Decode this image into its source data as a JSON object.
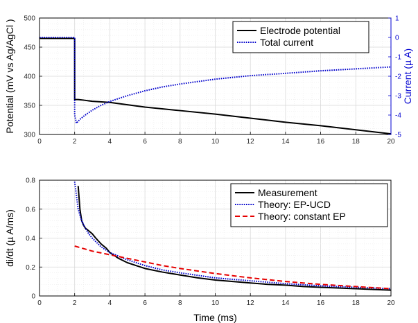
{
  "chart_data": [
    {
      "type": "line",
      "xlabel": "",
      "ylabel": "Potential (mV vs Ag/AgCl )",
      "y2label": "Current (µ A)",
      "xlim": [
        0,
        20
      ],
      "ylim": [
        300,
        500
      ],
      "y2lim": [
        -5,
        1
      ],
      "x_ticks": [
        0,
        2,
        4,
        6,
        8,
        10,
        12,
        14,
        16,
        18,
        20
      ],
      "y_ticks": [
        300,
        350,
        400,
        450,
        500
      ],
      "y2_ticks": [
        -5,
        -4,
        -3,
        -2,
        -1,
        0,
        1
      ],
      "grid": true,
      "legend_position": "top-right",
      "series": [
        {
          "name": "Electrode potential",
          "axis": "left",
          "color": "#000000",
          "style": "solid",
          "x": [
            0,
            2,
            2.001,
            2.2,
            2.5,
            3,
            4,
            5,
            6,
            8,
            10,
            12,
            14,
            16,
            18,
            20
          ],
          "y": [
            465,
            465,
            360,
            360,
            359,
            357,
            355,
            351,
            347,
            341,
            335,
            328,
            321,
            315,
            308,
            301
          ]
        },
        {
          "name": "Total current",
          "axis": "right",
          "color": "#0000cc",
          "style": "dotted",
          "x": [
            0,
            2,
            2.001,
            2.1,
            2.3,
            2.6,
            3,
            3.5,
            4,
            5,
            6,
            7,
            8,
            10,
            12,
            14,
            16,
            18,
            20
          ],
          "y": [
            0,
            0,
            -4.0,
            -4.42,
            -4.22,
            -4.0,
            -3.75,
            -3.5,
            -3.3,
            -3.0,
            -2.75,
            -2.55,
            -2.4,
            -2.15,
            -1.97,
            -1.85,
            -1.72,
            -1.62,
            -1.52
          ]
        }
      ]
    },
    {
      "type": "line",
      "xlabel": "Time (ms)",
      "ylabel": "di/dt (µ A/ms)",
      "xlim": [
        0,
        20
      ],
      "ylim": [
        0,
        0.8
      ],
      "x_ticks": [
        0,
        2,
        4,
        6,
        8,
        10,
        12,
        14,
        16,
        18,
        20
      ],
      "y_ticks": [
        0,
        0.2,
        0.4,
        0.6,
        0.8
      ],
      "grid": true,
      "legend_position": "top-right",
      "series": [
        {
          "name": "Measurement",
          "color": "#000000",
          "style": "solid",
          "x": [
            2.2,
            2.3,
            2.4,
            2.5,
            2.6,
            2.7,
            2.8,
            3,
            3.2,
            3.5,
            3.8,
            4,
            4.5,
            5,
            5.5,
            6,
            7,
            8,
            9,
            10,
            11,
            12,
            13,
            14,
            15,
            16,
            17,
            18,
            19,
            20
          ],
          "y": [
            0.76,
            0.6,
            0.52,
            0.49,
            0.47,
            0.46,
            0.45,
            0.43,
            0.4,
            0.36,
            0.33,
            0.3,
            0.26,
            0.23,
            0.21,
            0.19,
            0.165,
            0.145,
            0.125,
            0.11,
            0.1,
            0.09,
            0.08,
            0.075,
            0.065,
            0.06,
            0.055,
            0.05,
            0.045,
            0.04
          ]
        },
        {
          "name": "Theory: EP-UCD",
          "color": "#0000cc",
          "style": "dotted",
          "x": [
            2.0,
            2.2,
            2.4,
            2.6,
            2.8,
            3,
            3.5,
            4,
            5,
            6,
            7,
            8,
            10,
            12,
            14,
            16,
            18,
            20
          ],
          "y": [
            0.79,
            0.6,
            0.52,
            0.47,
            0.43,
            0.4,
            0.34,
            0.3,
            0.25,
            0.21,
            0.18,
            0.16,
            0.125,
            0.105,
            0.085,
            0.07,
            0.06,
            0.05
          ]
        },
        {
          "name": "Theory: constant EP",
          "color": "#e60000",
          "style": "dashed",
          "x": [
            2.0,
            3,
            4,
            5,
            6,
            7,
            8,
            10,
            12,
            14,
            16,
            18,
            20
          ],
          "y": [
            0.345,
            0.31,
            0.285,
            0.26,
            0.235,
            0.21,
            0.19,
            0.155,
            0.125,
            0.1,
            0.08,
            0.065,
            0.05
          ]
        }
      ]
    }
  ],
  "legend_top": [
    "Electrode potential",
    "Total current"
  ],
  "legend_bottom": [
    "Measurement",
    "Theory: EP-UCD",
    "Theory: constant EP"
  ],
  "colors": {
    "black": "#000000",
    "blue": "#0000cc",
    "red": "#e60000",
    "axis_right": "#0000d0"
  }
}
